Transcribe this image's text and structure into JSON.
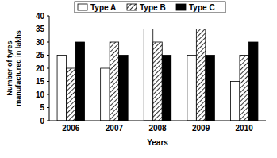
{
  "chart_data": {
    "type": "bar",
    "x_label": "Years",
    "y_label": "Number of tyres manufactured in lakhs",
    "categories": [
      "2006",
      "2007",
      "2008",
      "2009",
      "2010"
    ],
    "series": [
      {
        "name": "Type A",
        "color": "#ffffff",
        "values": [
          25,
          20,
          35,
          25,
          15
        ]
      },
      {
        "name": "Type B",
        "color": "#000000",
        "marker": "hatch",
        "values": [
          20,
          30,
          30,
          35,
          25
        ]
      },
      {
        "name": "Type C",
        "color": "#000000",
        "values": [
          30,
          25,
          25,
          25,
          30
        ]
      }
    ],
    "ylim": [
      0,
      40
    ],
    "yticks": [
      0,
      5,
      10,
      15,
      20,
      25,
      30,
      35,
      40
    ],
    "grid": false,
    "legend": "top"
  }
}
